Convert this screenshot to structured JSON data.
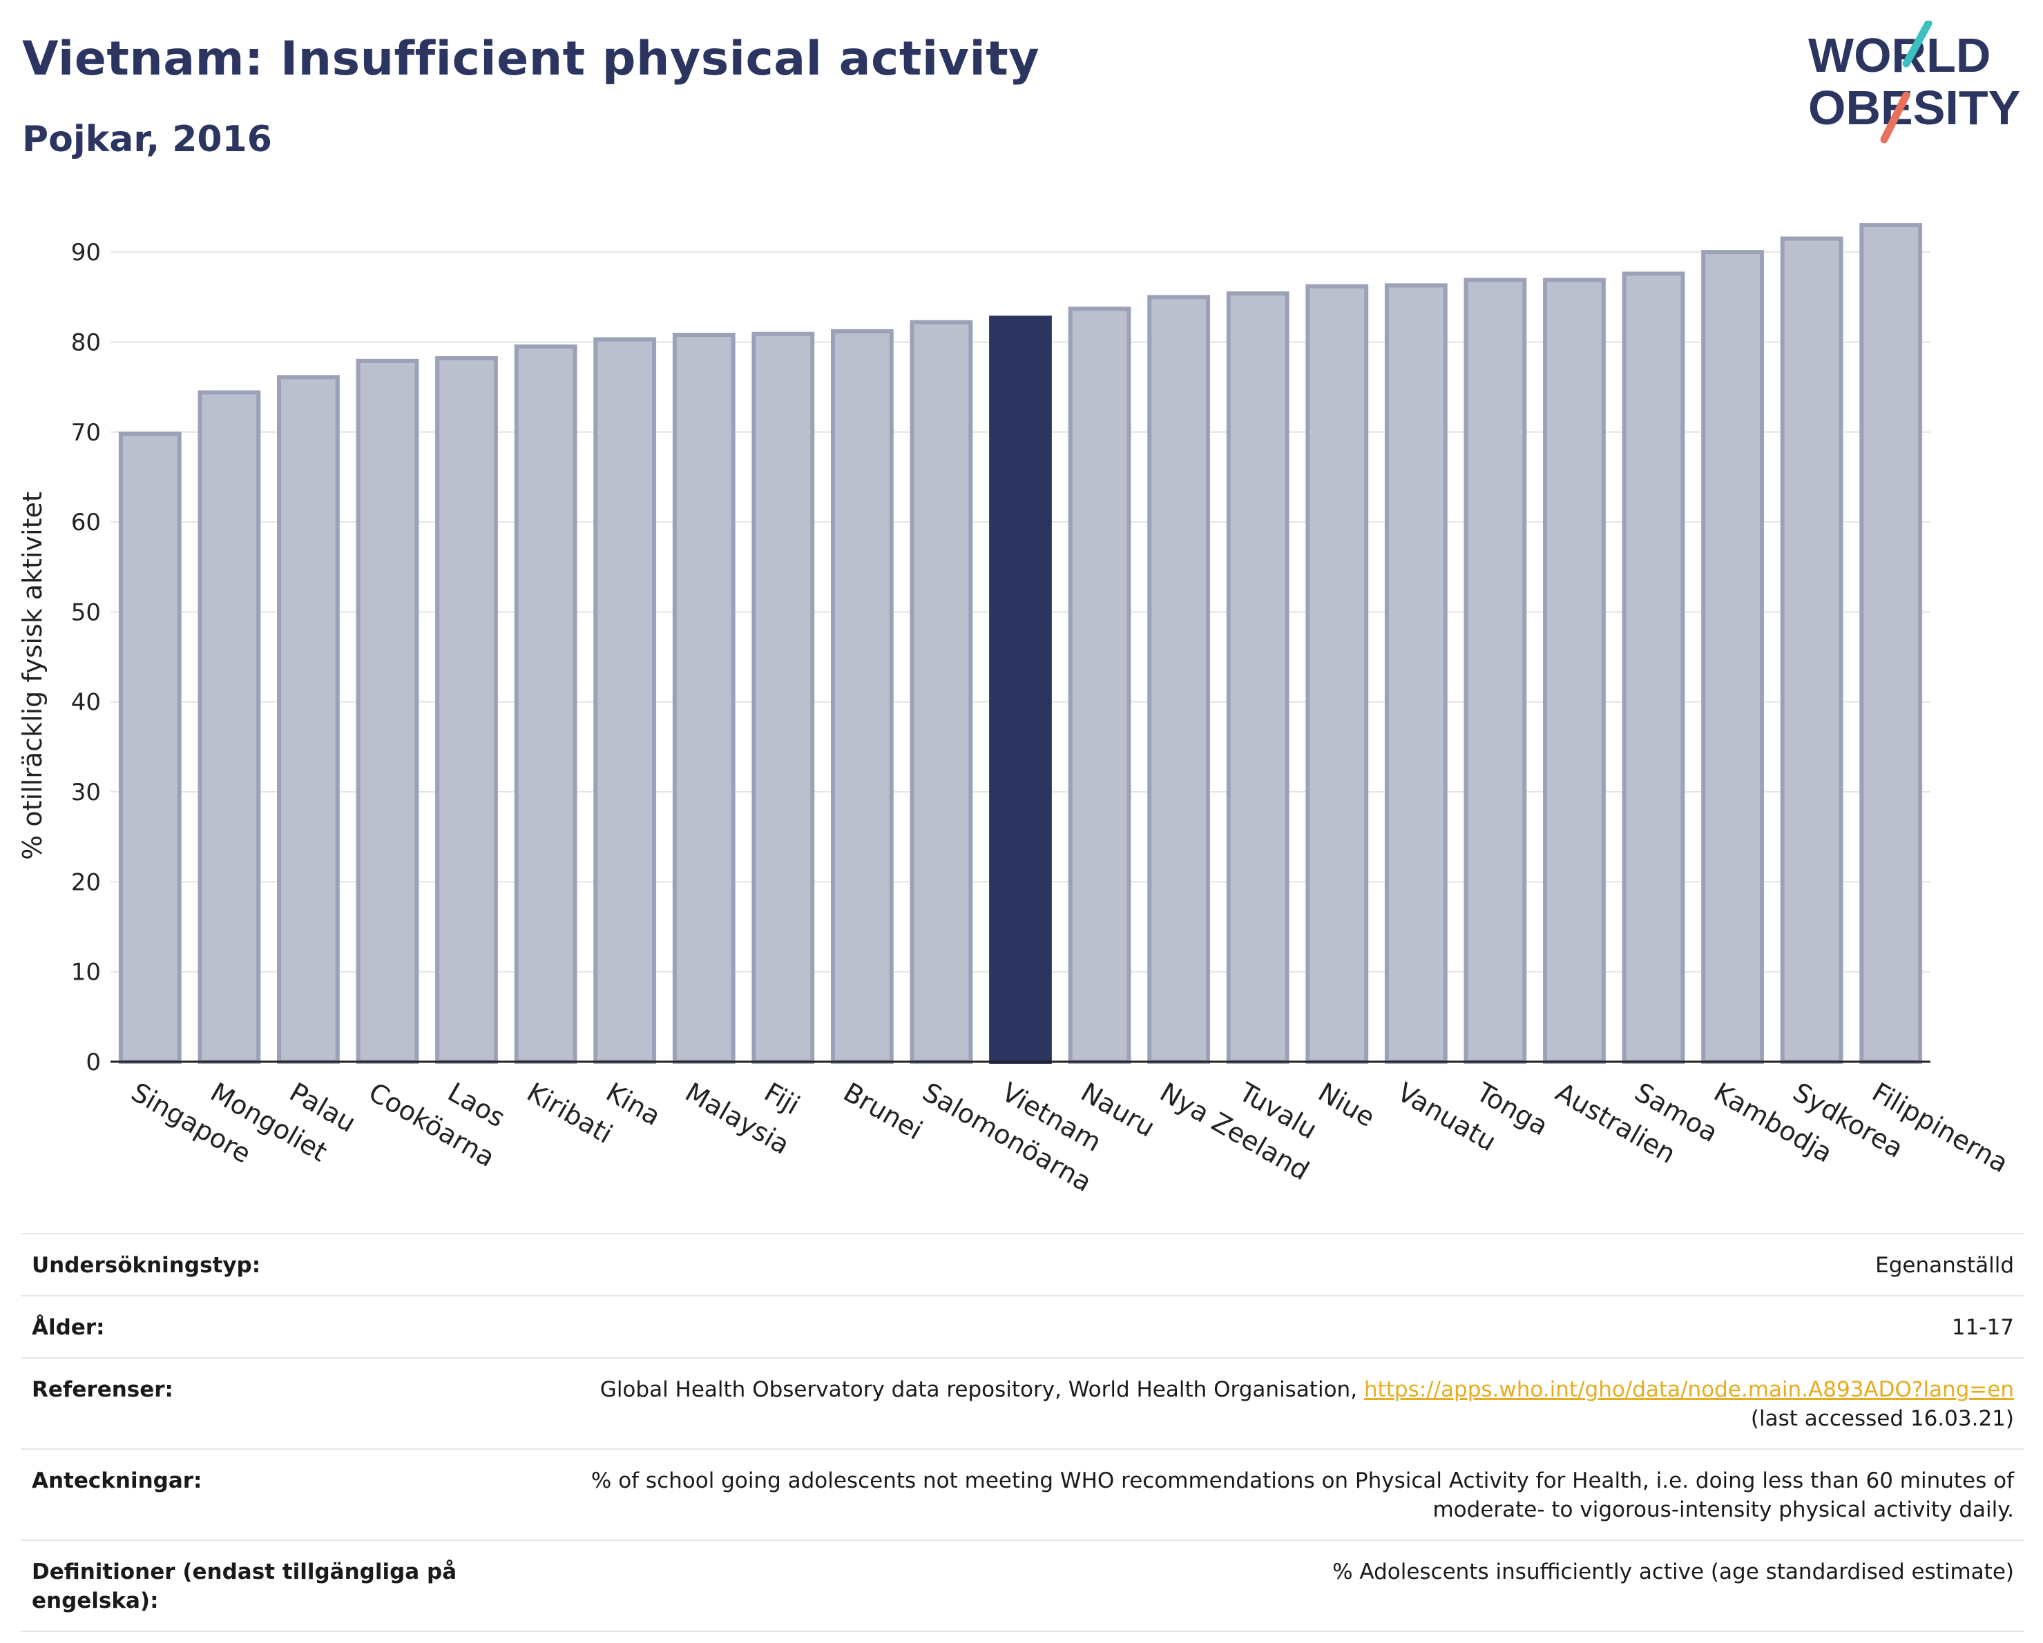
{
  "header": {
    "title": "Vietnam: Insufficient physical activity",
    "subtitle": "Pojkar, 2016"
  },
  "logo": {
    "line1": "WORLD",
    "line2": "OBESITY"
  },
  "colors": {
    "highlight": "#2b3560",
    "bar_fill": "#bcc0ce",
    "bar_stroke": "#9ba1b7",
    "title": "#2b3560",
    "link": "#e5ad1f",
    "logo_teal": "#3bbfbf",
    "logo_coral": "#e8725c"
  },
  "chart_data": {
    "type": "bar",
    "ylabel": "% otillräcklig fysisk aktivitet",
    "ylim": [
      0,
      95
    ],
    "yticks": [
      0,
      10,
      20,
      30,
      40,
      50,
      60,
      70,
      80,
      90
    ],
    "grid": true,
    "highlight": "Vietnam",
    "categories": [
      "Singapore",
      "Mongoliet",
      "Palau",
      "Cooköarna",
      "Laos",
      "Kiribati",
      "Kina",
      "Malaysia",
      "Fiji",
      "Brunei",
      "Salomonöarna",
      "Vietnam",
      "Nauru",
      "Nya Zeeland",
      "Tuvalu",
      "Niue",
      "Vanuatu",
      "Tonga",
      "Australien",
      "Samoa",
      "Kambodja",
      "Sydkorea",
      "Filippinerna"
    ],
    "values": [
      69.8,
      74.4,
      76.1,
      77.9,
      78.2,
      79.5,
      80.3,
      80.8,
      80.9,
      81.2,
      82.2,
      82.7,
      83.7,
      85.0,
      85.4,
      86.2,
      86.3,
      86.9,
      86.9,
      87.6,
      90.0,
      91.5,
      93.0
    ]
  },
  "meta": {
    "rows": [
      {
        "key": "Undersökningstyp:",
        "value": "Egenanställd"
      },
      {
        "key": "Ålder:",
        "value": "11-17"
      },
      {
        "key": "Referenser:",
        "value": "Global Health Observatory data repository, World Health Organisation, ",
        "link": "https://apps.who.int/gho/data/node.main.A893ADO?lang=en",
        "suffix": "(last accessed 16.03.21)"
      },
      {
        "key": "Anteckningar:",
        "value": "% of school going adolescents not meeting WHO recommendations on Physical Activity for Health, i.e. doing less than 60 minutes of moderate- to vigorous-intensity physical activity daily."
      },
      {
        "key": "Definitioner (endast tillgängliga på engelska):",
        "value": "% Adolescents insufficiently active (age standardised estimate)"
      }
    ]
  }
}
